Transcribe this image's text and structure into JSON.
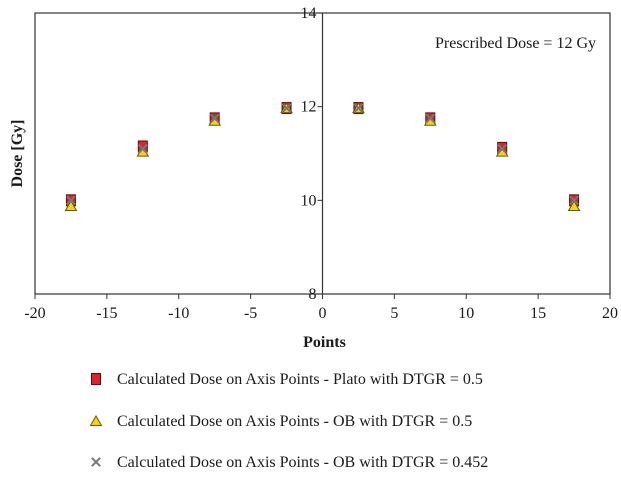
{
  "chart_data": {
    "type": "scatter",
    "title": "",
    "xlabel": "Points",
    "ylabel": "Dose [Gy]",
    "xlim": [
      -20,
      20
    ],
    "ylim": [
      8,
      14
    ],
    "x_ticks": [
      -20,
      -15,
      -10,
      -5,
      0,
      5,
      10,
      15,
      20
    ],
    "y_ticks": [
      8,
      10,
      12,
      14
    ],
    "grid": false,
    "legend_position": "bottom",
    "annotation": "Prescribed Dose = 12 Gy",
    "series": [
      {
        "name": "Calculated Dose on Axis Points - Plato with DTGR = 0.5",
        "marker": "square",
        "color": "#e0202a",
        "x": [
          -17.5,
          -12.5,
          -7.5,
          -2.5,
          2.5,
          7.5,
          12.5,
          17.5
        ],
        "y": [
          10.0,
          11.15,
          11.75,
          11.97,
          11.97,
          11.75,
          11.12,
          10.0
        ]
      },
      {
        "name": "Calculated Dose on Axis Points - OB with DTGR = 0.5",
        "marker": "triangle",
        "color": "#f2d21b",
        "x": [
          -17.5,
          -12.5,
          -7.5,
          -2.5,
          2.5,
          7.5,
          12.5,
          17.5
        ],
        "y": [
          9.88,
          11.04,
          11.7,
          11.97,
          11.97,
          11.7,
          11.04,
          9.88
        ]
      },
      {
        "name": "Calculated Dose on Axis Points - OB with DTGR = 0.452",
        "marker": "cross",
        "color": "#777777",
        "x": [
          -17.5,
          -12.5,
          -7.5,
          -2.5,
          2.5,
          7.5,
          12.5,
          17.5
        ],
        "y": [
          10.0,
          11.1,
          11.75,
          11.97,
          11.97,
          11.75,
          11.1,
          10.0
        ]
      }
    ]
  }
}
